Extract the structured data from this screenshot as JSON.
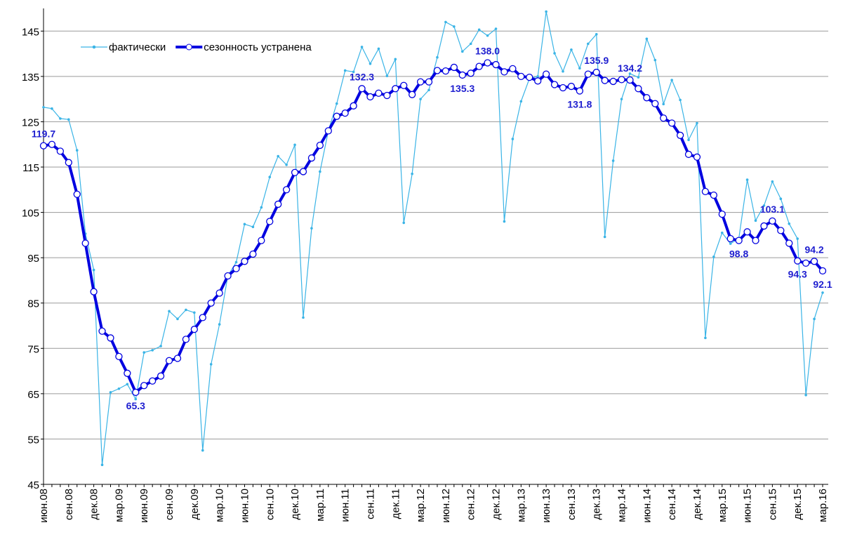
{
  "chart_data": {
    "type": "line",
    "categories": [
      "июн.08",
      null,
      null,
      "сен.08",
      null,
      null,
      "дек.08",
      null,
      null,
      "мар.09",
      null,
      null,
      "июн.09",
      null,
      null,
      "сен.09",
      null,
      null,
      "дек.09",
      null,
      null,
      "мар.10",
      null,
      null,
      "июн.10",
      null,
      null,
      "сен.10",
      null,
      null,
      "дек.10",
      null,
      null,
      "мар.11",
      null,
      null,
      "июн.11",
      null,
      null,
      "сен.11",
      null,
      null,
      "дек.11",
      null,
      null,
      "мар.12",
      null,
      null,
      "июн.12",
      null,
      null,
      "сен.12",
      null,
      null,
      "дек.12",
      null,
      null,
      "мар.13",
      null,
      null,
      "июн.13",
      null,
      null,
      "сен.13",
      null,
      null,
      "дек.13",
      null,
      null,
      "мар.14",
      null,
      null,
      "июн.14",
      null,
      null,
      "сен.14",
      null,
      null,
      "дек.14",
      null,
      null,
      "мар.15",
      null,
      null,
      "июн.15",
      null,
      null,
      "сен.15",
      null,
      null,
      "дек.15",
      null,
      null,
      "мар.16"
    ],
    "series": [
      {
        "name": "фактически",
        "color": "#3ab4e6",
        "values": [
          128.2,
          127.9,
          125.7,
          125.5,
          118.7,
          100.3,
          92.3,
          49.3,
          65.3,
          66.1,
          67.1,
          63.8,
          74.1,
          74.6,
          75.5,
          83.2,
          81.5,
          83.5,
          82.9,
          52.5,
          71.5,
          80.3,
          91.0,
          94.0,
          102.4,
          101.8,
          106.1,
          112.8,
          117.4,
          115.5,
          119.9,
          81.8,
          101.5,
          114.0,
          123.0,
          129.0,
          136.3,
          136.0,
          141.5,
          137.8,
          141.1,
          135.1,
          138.8,
          102.7,
          113.5,
          130.0,
          132.0,
          139.2,
          147.0,
          146.0,
          140.5,
          142.2,
          145.3,
          144.0,
          145.5,
          103.0,
          121.2,
          129.5,
          134.5,
          135.0,
          149.3,
          140.1,
          136.1,
          140.9,
          136.8,
          142.2,
          144.3,
          99.6,
          116.4,
          130.0,
          135.6,
          134.8,
          143.3,
          138.6,
          128.9,
          134.2,
          129.8,
          121.0,
          124.7,
          77.3,
          95.2,
          100.5,
          98.1,
          99.3,
          112.2,
          103.2,
          106.5,
          111.8,
          108.0,
          102.5,
          99.2,
          64.7,
          81.5,
          87.3
        ]
      },
      {
        "name": "сезонность устранена",
        "color": "#0000e0",
        "values": [
          119.7,
          120.0,
          118.5,
          116.0,
          109.0,
          98.2,
          87.5,
          78.8,
          77.3,
          73.2,
          69.5,
          65.3,
          66.8,
          67.8,
          68.9,
          72.3,
          72.8,
          77.0,
          79.2,
          81.8,
          85.0,
          87.2,
          91.0,
          92.6,
          94.2,
          95.8,
          98.8,
          103.0,
          106.8,
          110.0,
          113.8,
          114.0,
          117.0,
          119.8,
          123.0,
          126.2,
          126.9,
          128.5,
          132.3,
          130.5,
          131.3,
          130.8,
          132.3,
          133.0,
          131.0,
          133.8,
          133.8,
          136.3,
          136.2,
          137.0,
          135.3,
          135.7,
          137.2,
          138.0,
          137.6,
          136.0,
          136.7,
          135.0,
          134.8,
          134.0,
          135.5,
          133.2,
          132.5,
          132.8,
          131.8,
          135.5,
          135.9,
          134.1,
          133.9,
          134.3,
          134.2,
          132.3,
          130.3,
          129.0,
          125.8,
          124.7,
          122.0,
          117.8,
          117.2,
          109.6,
          108.8,
          104.6,
          99.2,
          98.8,
          100.7,
          98.8,
          102.0,
          103.1,
          101.0,
          98.2,
          94.3,
          93.8,
          94.2,
          92.1
        ],
        "value_labels": [
          "119.7",
          null,
          null,
          null,
          null,
          null,
          null,
          null,
          null,
          null,
          null,
          "65.3",
          null,
          null,
          null,
          null,
          null,
          null,
          null,
          null,
          null,
          null,
          null,
          null,
          null,
          null,
          null,
          null,
          null,
          null,
          null,
          null,
          null,
          null,
          null,
          null,
          null,
          null,
          "132.3",
          null,
          null,
          null,
          null,
          null,
          null,
          null,
          null,
          null,
          null,
          null,
          "135.3",
          null,
          null,
          "138.0",
          null,
          null,
          null,
          null,
          null,
          null,
          null,
          null,
          null,
          null,
          "131.8",
          null,
          "135.9",
          null,
          null,
          null,
          "134.2",
          null,
          null,
          null,
          null,
          null,
          null,
          null,
          null,
          null,
          null,
          null,
          null,
          "98.8",
          null,
          null,
          null,
          "103.1",
          null,
          null,
          "94.3",
          null,
          "94.2",
          "92.1"
        ]
      }
    ],
    "ylim": [
      45,
      150
    ],
    "yticks": [
      45,
      55,
      65,
      75,
      85,
      95,
      105,
      115,
      125,
      135,
      145
    ],
    "grid": true,
    "legend": "top-left"
  }
}
